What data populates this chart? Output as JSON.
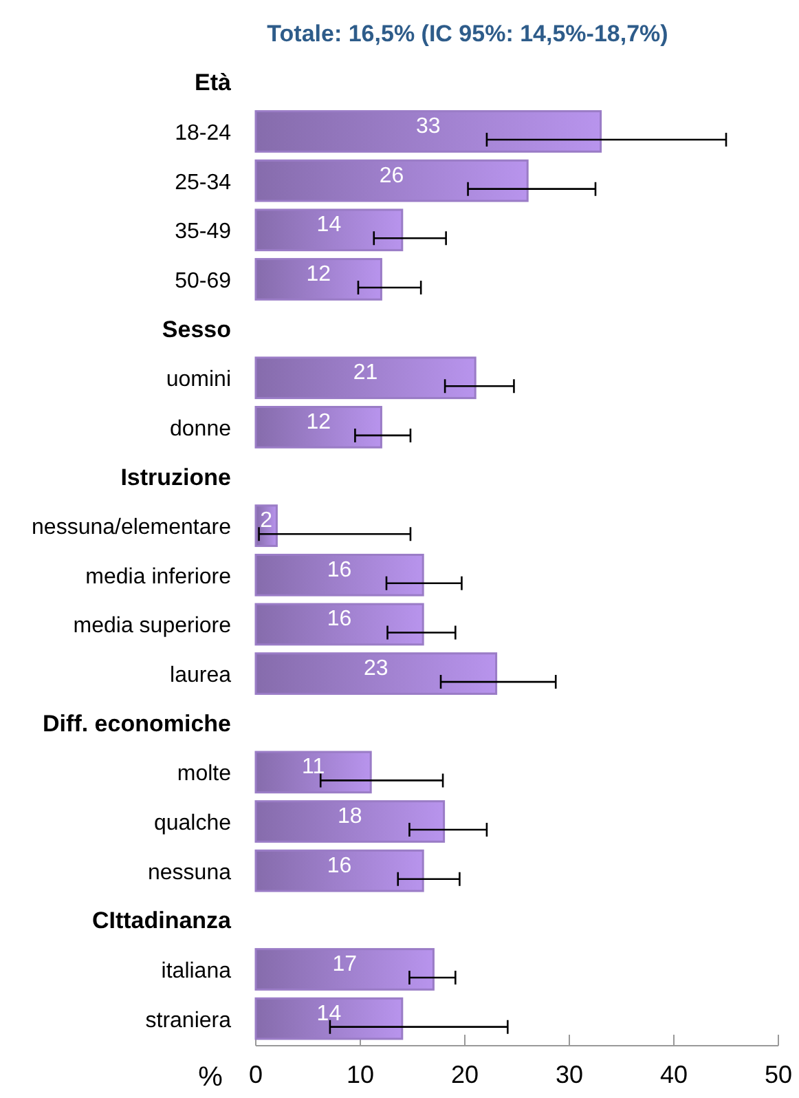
{
  "chart_data": {
    "type": "bar",
    "orientation": "horizontal",
    "title": "Totale: 16,5% (IC 95%: 14,5%-18,7%)",
    "xlabel": "%",
    "categories": [
      "Età",
      "18-24",
      "25-34",
      "35-49",
      "50-69",
      "Sesso",
      "uomini",
      "donne",
      "Istruzione",
      "nessuna/elementare",
      "media inferiore",
      "media superiore",
      "laurea",
      "Diff. economiche",
      "molte",
      "qualche",
      "nessuna",
      "CIttadinanza",
      "italiana",
      "straniera"
    ],
    "values": [
      null,
      33,
      26,
      14,
      12,
      null,
      21,
      12,
      null,
      2,
      16,
      16,
      23,
      null,
      11,
      18,
      16,
      null,
      17,
      14
    ],
    "errors": [
      null,
      [
        22.1,
        45
      ],
      [
        20.3,
        32.5
      ],
      [
        11.3,
        18.2
      ],
      [
        9.8,
        15.8
      ],
      null,
      [
        18.1,
        24.7
      ],
      [
        9.5,
        14.8
      ],
      null,
      [
        0.3,
        14.8
      ],
      [
        12.5,
        19.7
      ],
      [
        12.6,
        19.1
      ],
      [
        17.7,
        28.7
      ],
      null,
      [
        6.2,
        17.9
      ],
      [
        14.7,
        22.1
      ],
      [
        13.6,
        19.5
      ],
      null,
      [
        14.7,
        19.1
      ],
      [
        7.1,
        24.1
      ]
    ],
    "color": "#9a7cc6",
    "data_labels": true,
    "grid": false,
    "xlim": [
      0,
      50
    ],
    "xticks": [
      0,
      10,
      20,
      30,
      40,
      50
    ]
  }
}
